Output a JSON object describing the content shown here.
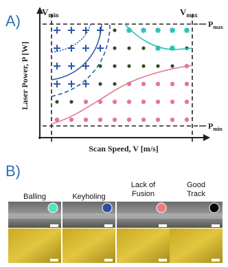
{
  "panel_a": {
    "label": "A)",
    "v_min": {
      "symbol": "V",
      "subscript": "min"
    },
    "v_max": {
      "symbol": "V",
      "subscript": "max"
    },
    "p_max": {
      "symbol": "P",
      "subscript": "max"
    },
    "p_min": {
      "symbol": "P",
      "subscript": "min"
    },
    "y_axis_label": "Laser Power, P [W]",
    "x_axis_label": "Scan Speed, V [m/s]"
  },
  "panel_b": {
    "label": "B)",
    "columns": [
      {
        "title": [
          "Balling"
        ]
      },
      {
        "title": [
          "Keyholing"
        ]
      },
      {
        "title": [
          "Lack of",
          "Fusion"
        ]
      },
      {
        "title": [
          "Good",
          "Track"
        ]
      }
    ]
  }
}
